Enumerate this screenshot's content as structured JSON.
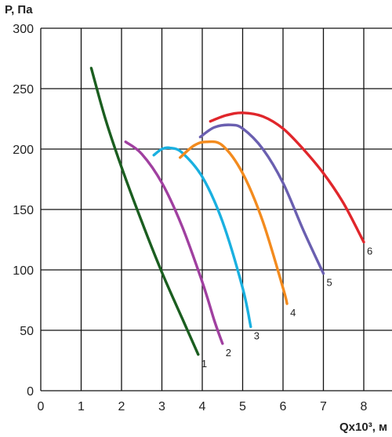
{
  "chart_data": {
    "type": "line",
    "ylabel": "P, Па",
    "xlabel": "Qx10³, м",
    "xlim": [
      0,
      8.5
    ],
    "ylim": [
      0,
      300
    ],
    "xticks": [
      "0",
      "1",
      "2",
      "3",
      "4",
      "5",
      "6",
      "7",
      "8"
    ],
    "yticks": [
      "0",
      "50",
      "100",
      "150",
      "200",
      "250",
      "300"
    ],
    "grid": true,
    "series": [
      {
        "name": "1",
        "color": "#1b5e20",
        "x": [
          1.25,
          1.6,
          2.0,
          2.5,
          3.0,
          3.5,
          3.9
        ],
        "y": [
          267,
          225,
          185,
          140,
          98,
          60,
          30
        ]
      },
      {
        "name": "2",
        "color": "#a040a0",
        "x": [
          2.1,
          2.5,
          3.0,
          3.5,
          4.0,
          4.3,
          4.5
        ],
        "y": [
          206,
          196,
          172,
          136,
          90,
          58,
          39
        ]
      },
      {
        "name": "3",
        "color": "#1ab0e0",
        "x": [
          2.8,
          3.0,
          3.2,
          3.5,
          4.0,
          4.5,
          5.0,
          5.2
        ],
        "y": [
          195,
          200,
          201,
          197,
          177,
          140,
          85,
          53
        ]
      },
      {
        "name": "4",
        "color": "#f38b1e",
        "x": [
          3.45,
          3.8,
          4.1,
          4.5,
          5.0,
          5.5,
          6.0,
          6.1
        ],
        "y": [
          193,
          203,
          206,
          203,
          180,
          140,
          85,
          72
        ]
      },
      {
        "name": "5",
        "color": "#6a5fb0",
        "x": [
          3.95,
          4.3,
          4.7,
          5.0,
          5.5,
          6.0,
          6.5,
          7.0
        ],
        "y": [
          210,
          218,
          220,
          217,
          200,
          172,
          133,
          97
        ]
      },
      {
        "name": "6",
        "color": "#e0262b",
        "x": [
          4.2,
          4.6,
          5.0,
          5.5,
          6.0,
          6.5,
          7.0,
          7.5,
          8.0
        ],
        "y": [
          223,
          228,
          230,
          227,
          217,
          200,
          180,
          155,
          123
        ]
      }
    ]
  }
}
